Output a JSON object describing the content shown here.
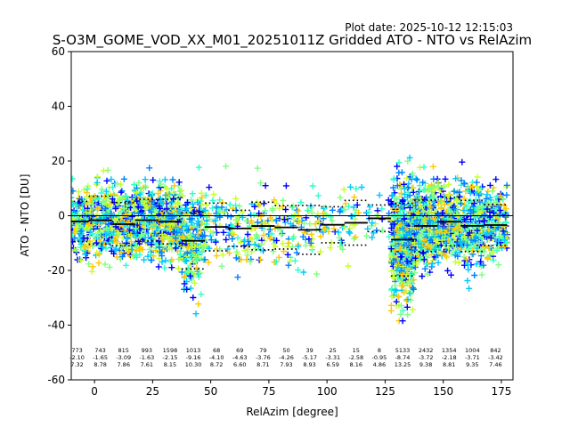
{
  "chart_data": {
    "type": "scatter",
    "title": "S-O3M_GOME_VOD_XX_M01_20251011Z Gridded ATO - NTO vs RelAzim",
    "plot_date": "Plot date: 2025-10-12 12:15:03",
    "xlabel": "RelAzim [degree]",
    "ylabel": "ATO - NTO [DU]",
    "xlim": [
      -10,
      180
    ],
    "ylim": [
      -60,
      60
    ],
    "xticks": [
      0,
      25,
      50,
      75,
      100,
      125,
      150,
      175
    ],
    "yticks": [
      -60,
      -40,
      -20,
      0,
      20,
      40,
      60
    ],
    "bin_width": 5,
    "zero_line": true,
    "marker": "+",
    "marker_colors": [
      "#0000ff",
      "#0080ff",
      "#00c8ff",
      "#2effc8",
      "#80ff80",
      "#c8ff2e",
      "#ffc800"
    ],
    "mean_line_color": "#000000",
    "bins": [
      {
        "x": -7.5,
        "count": 773,
        "mean": -2.1,
        "std": 7.32
      },
      {
        "x": 2.5,
        "count": 743,
        "mean": -1.65,
        "std": 8.78
      },
      {
        "x": 12.5,
        "count": 815,
        "mean": -3.09,
        "std": 7.86
      },
      {
        "x": 22.5,
        "count": 993,
        "mean": -1.63,
        "std": 7.61
      },
      {
        "x": 32.5,
        "count": 1598,
        "mean": -2.15,
        "std": 8.15
      },
      {
        "x": 42.5,
        "count": 1013,
        "mean": -9.16,
        "std": 10.3
      },
      {
        "x": 52.5,
        "count": 68,
        "mean": -4.1,
        "std": 8.72
      },
      {
        "x": 62.5,
        "count": 69,
        "mean": -4.63,
        "std": 6.6
      },
      {
        "x": 72.5,
        "count": 79,
        "mean": -3.76,
        "std": 8.71
      },
      {
        "x": 82.5,
        "count": 50,
        "mean": -4.26,
        "std": 7.93
      },
      {
        "x": 92.5,
        "count": 39,
        "mean": -5.17,
        "std": 8.93
      },
      {
        "x": 102.5,
        "count": 25,
        "mean": -3.31,
        "std": 6.59
      },
      {
        "x": 112.5,
        "count": 15,
        "mean": -2.58,
        "std": 8.16
      },
      {
        "x": 122.5,
        "count": 8,
        "mean": -0.95,
        "std": 4.86
      },
      {
        "x": 132.5,
        "count": 5133,
        "mean": -8.74,
        "std": 13.25
      },
      {
        "x": 142.5,
        "count": 2432,
        "mean": -3.72,
        "std": 9.38
      },
      {
        "x": 152.5,
        "count": 1354,
        "mean": -2.18,
        "std": 8.81
      },
      {
        "x": 162.5,
        "count": 1004,
        "mean": -3.71,
        "std": 9.35
      },
      {
        "x": 172.5,
        "count": 842,
        "mean": -3.42,
        "std": 7.46
      }
    ]
  }
}
